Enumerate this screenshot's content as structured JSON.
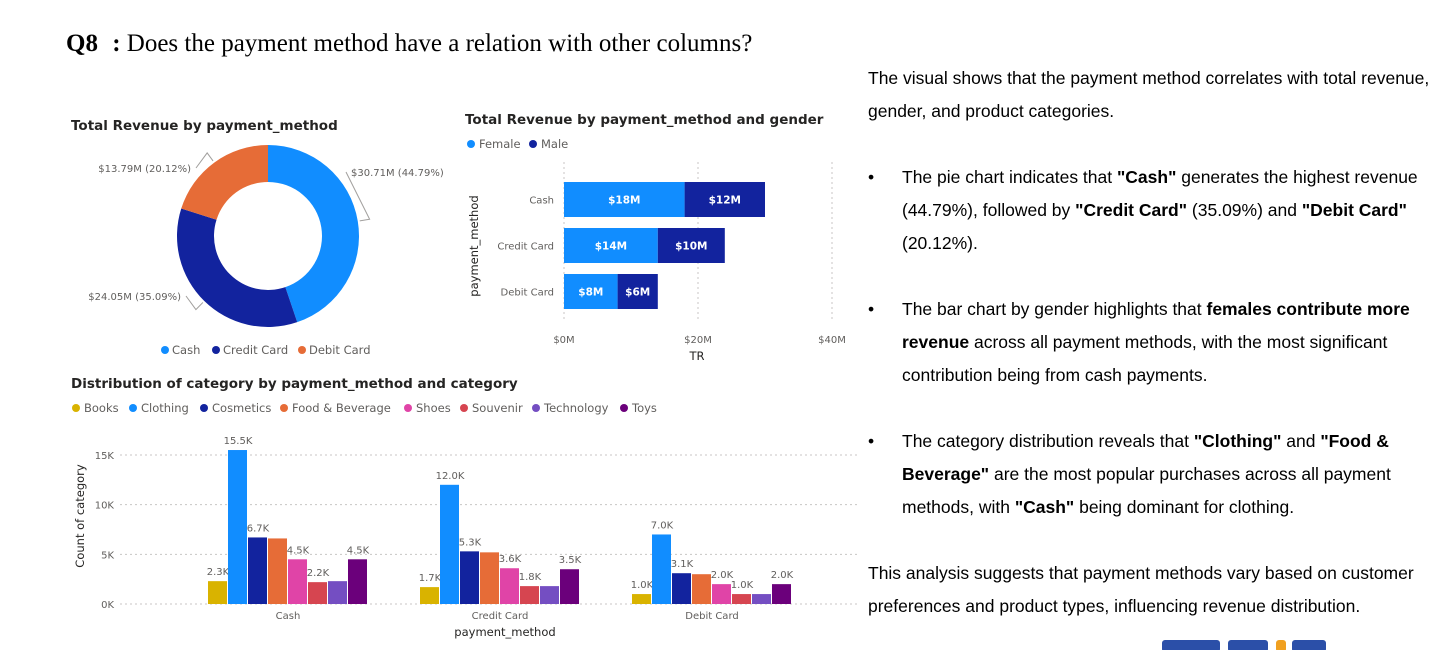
{
  "question": {
    "number": "Q8",
    "separator": ":",
    "text": "Does the payment method have a relation with other columns?"
  },
  "colors": {
    "cash": "#118DFF",
    "credit_card": "#12239E",
    "debit_card": "#E66C37",
    "female": "#118DFF",
    "male": "#12239E",
    "books": "#D9B300",
    "clothing": "#118DFF",
    "cosmetics": "#12239E",
    "food_beverage": "#E66C37",
    "shoes": "#E044A7",
    "souvenir": "#D64550",
    "technology": "#744EC2",
    "toys": "#6B007B"
  },
  "chart_data": [
    {
      "type": "pie",
      "variant": "donut",
      "title": "Total Revenue by payment_method",
      "legend_position": "bottom",
      "categories": [
        "Cash",
        "Credit Card",
        "Debit Card"
      ],
      "values": [
        30.71,
        24.05,
        13.79
      ],
      "unit": "$M",
      "data_labels": [
        "$30.71M (44.79%)",
        "$24.05M (35.09%)",
        "$13.79M (20.12%)"
      ]
    },
    {
      "type": "bar",
      "orientation": "horizontal",
      "stacked": true,
      "title": "Total Revenue by payment_method and gender",
      "legend_position": "top-left",
      "categories": [
        "Cash",
        "Credit Card",
        "Debit Card"
      ],
      "series": [
        {
          "name": "Female",
          "values": [
            18,
            14,
            8
          ],
          "labels": [
            "$18M",
            "$14M",
            "$8M"
          ]
        },
        {
          "name": "Male",
          "values": [
            12,
            10,
            6
          ],
          "labels": [
            "$12M",
            "$10M",
            "$6M"
          ]
        }
      ],
      "xlabel": "TR",
      "ylabel": "payment_method",
      "xlim": [
        0,
        40
      ],
      "x_ticks": [
        0,
        20,
        40
      ],
      "x_tick_labels": [
        "$0M",
        "$20M",
        "$40M"
      ],
      "grid": true
    },
    {
      "type": "bar",
      "orientation": "vertical",
      "grouped": true,
      "title": "Distribution of category by payment_method and category",
      "legend_position": "top-left",
      "categories": [
        "Cash",
        "Credit Card",
        "Debit Card"
      ],
      "series": [
        {
          "name": "Books",
          "values": [
            2.3,
            1.7,
            1.0
          ],
          "labels": [
            "2.3K",
            "1.7K",
            "1.0K"
          ]
        },
        {
          "name": "Clothing",
          "values": [
            15.5,
            12.0,
            7.0
          ],
          "labels": [
            "15.5K",
            "12.0K",
            "7.0K"
          ]
        },
        {
          "name": "Cosmetics",
          "values": [
            6.7,
            5.3,
            3.1
          ],
          "labels": [
            "6.7K",
            "5.3K",
            "3.1K"
          ]
        },
        {
          "name": "Food & Beverage",
          "values": [
            6.6,
            5.2,
            3.0
          ],
          "labels": [
            "",
            "",
            ""
          ]
        },
        {
          "name": "Shoes",
          "values": [
            4.5,
            3.6,
            2.0
          ],
          "labels": [
            "4.5K",
            "3.6K",
            "2.0K"
          ]
        },
        {
          "name": "Souvenir",
          "values": [
            2.2,
            1.8,
            1.0
          ],
          "labels": [
            "2.2K",
            "1.8K",
            "1.0K"
          ]
        },
        {
          "name": "Technology",
          "values": [
            2.3,
            1.8,
            1.0
          ],
          "labels": [
            "",
            "",
            ""
          ]
        },
        {
          "name": "Toys",
          "values": [
            4.5,
            3.5,
            2.0
          ],
          "labels": [
            "4.5K",
            "3.5K",
            "2.0K"
          ]
        }
      ],
      "xlabel": "payment_method",
      "ylabel": "Count of category",
      "ylim": [
        0,
        16
      ],
      "y_ticks": [
        0,
        5,
        10,
        15
      ],
      "y_tick_labels": [
        "0K",
        "5K",
        "10K",
        "15K"
      ],
      "grid": true
    }
  ],
  "analysis": {
    "intro": "The visual shows that the payment method correlates with total revenue, gender, and product categories.",
    "bullet_char": "•",
    "bullets": [
      {
        "p1": "The pie chart indicates that ",
        "b1": "\"Cash\"",
        "p2": " generates the highest revenue (44.79%), followed by ",
        "b2": "\"Credit Card\"",
        "p3": " (35.09%) and ",
        "b3": "\"Debit Card\"",
        "p4": " (20.12%)."
      },
      {
        "p1": "The bar chart by gender highlights that ",
        "b1": "females contribute more revenue",
        "p2": " across all payment methods, with the most significant contribution being from cash payments."
      },
      {
        "p1": "The category distribution reveals that ",
        "b1": "\"Clothing\"",
        "p2": " and ",
        "b2": "\"Food & Beverage\"",
        "p3": " are the most popular purchases across all payment methods, with ",
        "b3": "\"Cash\"",
        "p4": " being dominant for clothing."
      }
    ],
    "closing": "This analysis suggests that payment methods vary based on customer preferences and product types, influencing revenue distribution."
  },
  "footer_logo": {
    "name": "brand-logo"
  }
}
